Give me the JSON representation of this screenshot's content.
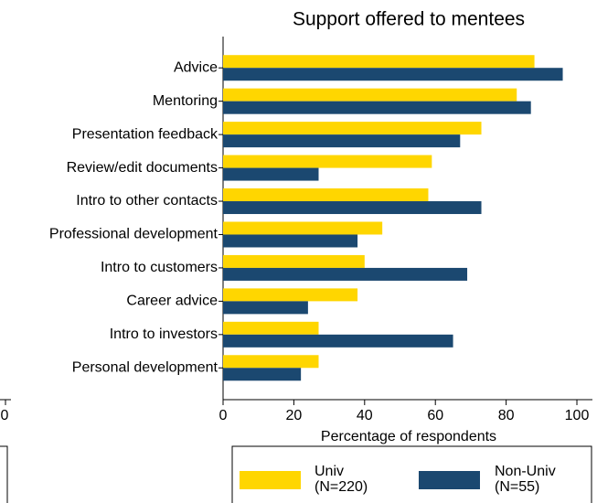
{
  "chart_data": [
    {
      "type": "hbar",
      "title": "Support offered to mentees",
      "xlabel": "Percentage of respondents",
      "categories": [
        "Advice",
        "Mentoring",
        "Presentation feedback",
        "Review/edit documents",
        "Intro to other contacts",
        "Professional development",
        "Intro to customers",
        "Career advice",
        "Intro to investors",
        "Personal development"
      ],
      "series": [
        {
          "name": "Univ\n(N=220)",
          "color": "#ffd600",
          "values": [
            88,
            83,
            73,
            59,
            58,
            45,
            40,
            38,
            27,
            27
          ]
        },
        {
          "name": "Non-Univ\n(N=55)",
          "color": "#1b4870",
          "values": [
            96,
            87,
            67,
            27,
            73,
            38,
            69,
            24,
            65,
            22
          ]
        }
      ],
      "xlim": [
        0,
        104
      ],
      "xticks": [
        0,
        20,
        40,
        60,
        80,
        100
      ]
    },
    {
      "type": "fragment",
      "xticks": [
        0
      ]
    }
  ]
}
